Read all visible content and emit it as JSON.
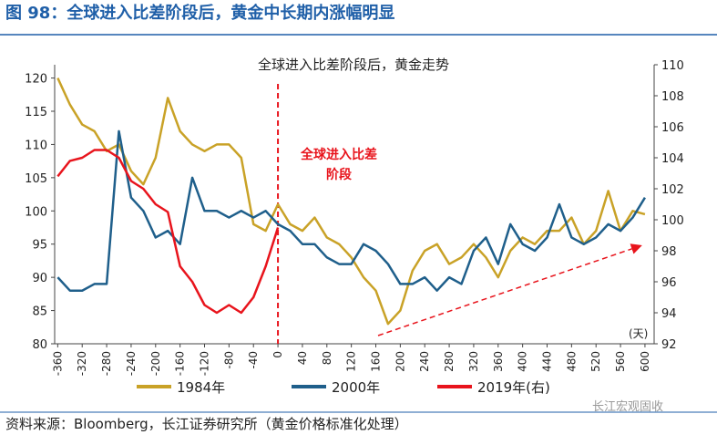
{
  "chart_data": {
    "type": "line",
    "title": "图 98：全球进入比差阶段后，黄金中长期内涨幅明显",
    "subtitle": "全球进入比差阶段后，黄金走势",
    "annotation": [
      "全球进入比差",
      "阶段"
    ],
    "x_unit": "(天)",
    "source": "资料来源：Bloomberg，长江证券研究所（黄金价格标准化处理）",
    "watermark": "长江宏观固收",
    "x": [
      -360,
      -340,
      -320,
      -300,
      -280,
      -260,
      -240,
      -220,
      -200,
      -180,
      -160,
      -140,
      -120,
      -100,
      -80,
      -60,
      -40,
      -20,
      0,
      20,
      40,
      60,
      80,
      100,
      120,
      140,
      160,
      180,
      200,
      220,
      240,
      260,
      280,
      300,
      320,
      340,
      360,
      380,
      400,
      420,
      440,
      460,
      480,
      500,
      520,
      540,
      560,
      580,
      600
    ],
    "xlim": [
      -365,
      615
    ],
    "xticks": [
      -360,
      -320,
      -280,
      -240,
      -200,
      -160,
      -120,
      -80,
      -40,
      0,
      40,
      80,
      120,
      160,
      200,
      240,
      280,
      320,
      360,
      400,
      440,
      480,
      520,
      560,
      600
    ],
    "ylim": [
      80,
      122
    ],
    "yticks": [
      80,
      85,
      90,
      95,
      100,
      105,
      110,
      115,
      120
    ],
    "y2lim": [
      92,
      110
    ],
    "y2ticks": [
      92,
      94,
      96,
      98,
      100,
      102,
      104,
      106,
      108,
      110
    ],
    "series": [
      {
        "name": "1984年",
        "color": "#c9a227",
        "values": [
          120,
          116,
          113,
          112,
          109,
          110,
          106,
          104,
          108,
          117,
          112,
          110,
          109,
          110,
          110,
          108,
          98,
          97,
          101,
          98,
          97,
          99,
          96,
          95,
          93,
          90,
          88,
          83,
          85,
          91,
          94,
          95,
          92,
          93,
          95,
          93,
          90,
          94,
          96,
          95,
          97,
          97,
          99,
          95,
          97,
          103,
          97,
          100,
          99.5
        ]
      },
      {
        "name": "2000年",
        "color": "#1f5f8b",
        "values": [
          90,
          88,
          88,
          89,
          89,
          112,
          102,
          100,
          96,
          97,
          95,
          105,
          100,
          100,
          99,
          100,
          99,
          100,
          98,
          97,
          95,
          95,
          93,
          92,
          92,
          95,
          94,
          92,
          89,
          89,
          90,
          88,
          90,
          89,
          94,
          96,
          92,
          98,
          95,
          94,
          96,
          101,
          96,
          95,
          96,
          98,
          97,
          99,
          102
        ]
      },
      {
        "name": "2019年(右)",
        "color": "#e8141c",
        "axis": "y2",
        "values": [
          102.8,
          103.8,
          104,
          104.5,
          104.5,
          104,
          102.5,
          102,
          101,
          100.5,
          97,
          96,
          94.5,
          94,
          94.5,
          94,
          95,
          97,
          99.5,
          null,
          null,
          null,
          null,
          null,
          null,
          null,
          null,
          null,
          null,
          null,
          null,
          null,
          null,
          null,
          null,
          null,
          null,
          null,
          null,
          null,
          null,
          null,
          null,
          null,
          null,
          null,
          null,
          null,
          null
        ]
      }
    ]
  }
}
